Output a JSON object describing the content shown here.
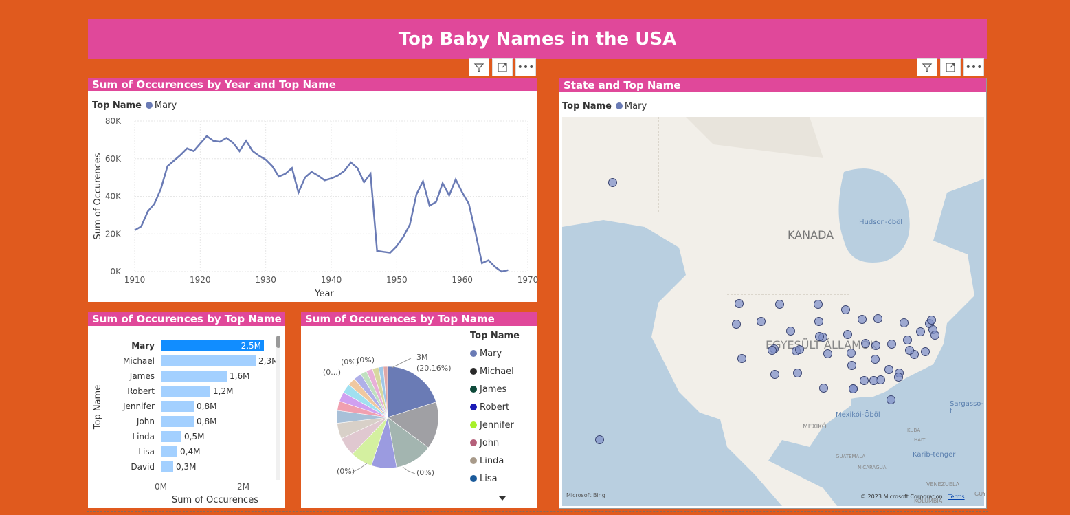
{
  "report_title": "Top Baby Names in the USA",
  "line_chart": {
    "title": "Sum of Occurences by Year and Top Name",
    "legend_label": "Top Name",
    "legend_series": "Mary",
    "xlabel": "Year",
    "ylabel": "Sum of Occurences",
    "yticks": [
      "80K",
      "60K",
      "40K",
      "20K",
      "0K"
    ],
    "xticks": [
      "1910",
      "1920",
      "1930",
      "1940",
      "1950",
      "1960",
      "1970"
    ]
  },
  "bar_chart": {
    "title": "Sum of Occurences by Top Name",
    "ylabel": "Top Name",
    "xlabel": "Sum of Occurences",
    "xticks": [
      "0M",
      "2M"
    ]
  },
  "pie_chart": {
    "title": "Sum of Occurences by Top Name",
    "legend_title": "Top Name",
    "labels": {
      "main": "3M",
      "main_pct": "(20,16%)",
      "l1": "(0%)",
      "l2": "(0%)",
      "l3": "(0...)",
      "l4": "(0%)",
      "l5": "(0%)"
    }
  },
  "map": {
    "title": "State and Top Name",
    "legend_label": "Top Name",
    "legend_series": "Mary",
    "labels": {
      "canada": "KANADA",
      "usa": "EGYESÜLT ÁLLAMOK",
      "mexico": "MEXIKÓ",
      "hudson": "Hudson-öböl",
      "mexico_gulf": "Mexikói-Öböl",
      "sargasso": "Sargasso-t",
      "caribbean": "Karib-tenger",
      "cuba": "KUBA",
      "haiti": "HAITI",
      "guatemala": "GUATEMALA",
      "nicaragua": "NICARAGUA",
      "venezuela": "VENEZUELA",
      "colombia": "KOLUMBIA",
      "guy": "GUY"
    },
    "bing": "Microsoft Bing",
    "copyright": "© 2023 Microsoft Corporation",
    "terms": "Terms"
  },
  "colors": {
    "accent": "#e0489a",
    "background": "#e05a1e",
    "series": "#6a7bb5",
    "bar_selected": "#118dff",
    "bar": "#a3d0ff"
  },
  "chart_data": [
    {
      "type": "line",
      "title": "Sum of Occurences by Year and Top Name",
      "xlabel": "Year",
      "ylabel": "Sum of Occurences",
      "ylim": [
        0,
        80000
      ],
      "xlim": [
        1910,
        1970
      ],
      "series": [
        {
          "name": "Mary",
          "x": [
            1910,
            1911,
            1912,
            1913,
            1914,
            1915,
            1916,
            1917,
            1918,
            1919,
            1920,
            1921,
            1922,
            1923,
            1924,
            1925,
            1926,
            1927,
            1928,
            1929,
            1930,
            1931,
            1932,
            1933,
            1934,
            1935,
            1936,
            1937,
            1938,
            1939,
            1940,
            1941,
            1942,
            1943,
            1944,
            1945,
            1946,
            1947,
            1948,
            1949,
            1950,
            1951,
            1952,
            1953,
            1954,
            1955,
            1956,
            1957,
            1958,
            1959,
            1960,
            1961,
            1962,
            1963,
            1964,
            1965,
            1966,
            1967
          ],
          "y": [
            22000,
            24000,
            32000,
            36000,
            44000,
            56000,
            59000,
            62000,
            65500,
            64000,
            68000,
            72000,
            69500,
            69000,
            71000,
            68500,
            64000,
            69500,
            64000,
            61500,
            59500,
            56000,
            50500,
            52000,
            55000,
            42000,
            50000,
            53000,
            51000,
            48500,
            49500,
            51000,
            53500,
            58000,
            55000,
            47500,
            52000,
            11000,
            10500,
            10000,
            13500,
            18500,
            25000,
            41000,
            48000,
            35000,
            37000,
            47000,
            40500,
            49000,
            42000,
            36000,
            21000,
            4500,
            6000,
            2500,
            0,
            800
          ]
        }
      ]
    },
    {
      "type": "bar",
      "title": "Sum of Occurences by Top Name",
      "xlabel": "Sum of Occurences",
      "ylabel": "Top Name",
      "categories": [
        "Mary",
        "Michael",
        "James",
        "Robert",
        "Jennifer",
        "John",
        "Linda",
        "Lisa",
        "David"
      ],
      "values": [
        2.5,
        2.3,
        1.6,
        1.2,
        0.8,
        0.8,
        0.5,
        0.4,
        0.3
      ],
      "labels": [
        "2,5M",
        "2,3M",
        "1,6M",
        "1,2M",
        "0,8M",
        "0,8M",
        "0,5M",
        "0,4M",
        "0,3M"
      ],
      "xlim": [
        0,
        2.6
      ]
    },
    {
      "type": "pie",
      "title": "Sum of Occurences by Top Name",
      "legend": [
        "Mary",
        "Michael",
        "James",
        "Robert",
        "Jennifer",
        "John",
        "Linda",
        "Lisa"
      ],
      "legend_colors": [
        "#6a7bb5",
        "#2a2a2a",
        "#0e4a3a",
        "#1a1ab5",
        "#a8f02a",
        "#b5607a",
        "#a89a8a",
        "#1a5a9a"
      ],
      "slices": [
        {
          "value": 20.16,
          "color": "#6a7bb5"
        },
        {
          "value": 15,
          "color": "#a0a0a4"
        },
        {
          "value": 12,
          "color": "#a3b5b0"
        },
        {
          "value": 8,
          "color": "#9b9be0"
        },
        {
          "value": 7,
          "color": "#d4f0a0"
        },
        {
          "value": 6,
          "color": "#e0c8d0"
        },
        {
          "value": 5,
          "color": "#d8d0c8"
        },
        {
          "value": 4,
          "color": "#a8c0d8"
        },
        {
          "value": 3,
          "color": "#f0a0b0"
        },
        {
          "value": 3,
          "color": "#d0a0f0"
        },
        {
          "value": 3,
          "color": "#a0e0f0"
        },
        {
          "value": 2.5,
          "color": "#f0c8a0"
        },
        {
          "value": 2.5,
          "color": "#b0b0e8"
        },
        {
          "value": 2,
          "color": "#c0e0c0"
        },
        {
          "value": 2,
          "color": "#e8b0d8"
        },
        {
          "value": 2,
          "color": "#d8d8a0"
        },
        {
          "value": 1.5,
          "color": "#a0c8e8"
        },
        {
          "value": 1.34,
          "color": "#e0a8a8"
        }
      ]
    }
  ]
}
